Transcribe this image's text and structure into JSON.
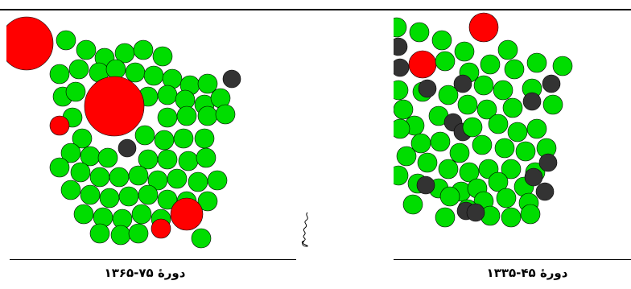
{
  "captions": {
    "left": "دورهٔ ۷۵-۱۳۶۵",
    "right": "دورهٔ ۴۵-۱۳۳۵"
  },
  "colors": {
    "green": "#00dd00",
    "red": "#ff0000",
    "dark": "#333333",
    "stroke": "#000000"
  },
  "panels": {
    "left": {
      "legend": [
        "green circles",
        "red circles",
        "dark circles"
      ]
    },
    "right": {
      "legend": [
        "green circles",
        "red circles",
        "dark circles"
      ]
    }
  }
}
